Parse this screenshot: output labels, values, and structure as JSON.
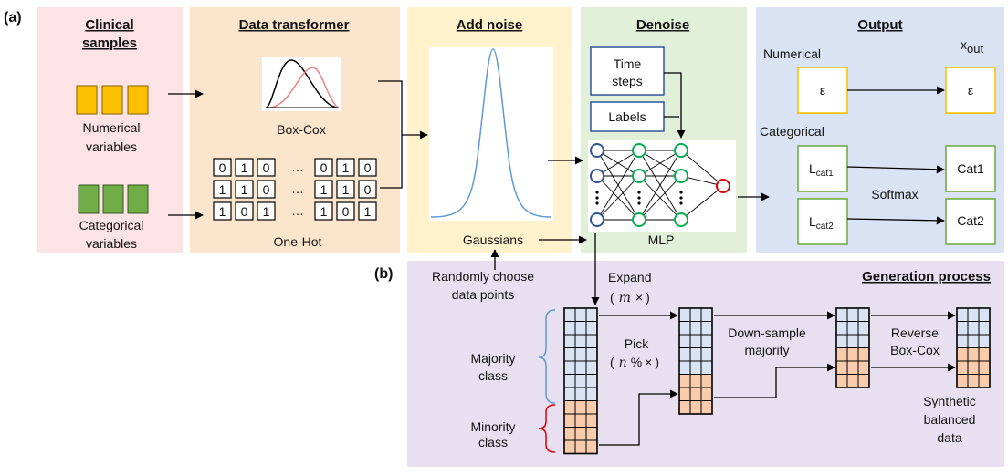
{
  "panel_a": {
    "tag": "(a)",
    "clinical": {
      "title_line1": "Clinical",
      "title_line2": "samples",
      "numerical_line1": "Numerical",
      "numerical_line2": "variables",
      "categorical_line1": "Categorical",
      "categorical_line2": "variables"
    },
    "transformer": {
      "title": "Data transformer",
      "boxcox": "Box-Cox",
      "onehot": "One-Hot",
      "ellipsis": "…",
      "rows": [
        [
          "0",
          "1",
          "0",
          "0",
          "1",
          "0"
        ],
        [
          "1",
          "1",
          "0",
          "1",
          "1",
          "0"
        ],
        [
          "1",
          "0",
          "1",
          "1",
          "0",
          "1"
        ]
      ]
    },
    "noise": {
      "title": "Add noise",
      "gaussians": "Gaussians"
    },
    "denoise": {
      "title": "Denoise",
      "time_line1": "Time",
      "time_line2": "steps",
      "labels": "Labels",
      "mlp": "MLP"
    },
    "output": {
      "title": "Output",
      "numerical": "Numerical",
      "categorical": "Categorical",
      "xout_main": "x",
      "xout_sub": "out",
      "epsilon": "ε",
      "lcat1_main": "L",
      "lcat1_sub": "cat1",
      "lcat2_main": "L",
      "lcat2_sub": "cat2",
      "cat1": "Cat1",
      "cat2": "Cat2",
      "softmax": "Softmax"
    }
  },
  "panel_b": {
    "tag": "(b)",
    "title": "Generation process",
    "random_line1": "Randomly choose",
    "random_line2": "data points",
    "expand_line1": "Expand",
    "expand_m": "m",
    "expand_x": "×",
    "expand_open": "(",
    "expand_close": ")",
    "pick": "Pick",
    "pick_n": "n",
    "pick_pct": "%",
    "majority_line1": "Majority",
    "majority_line2": "class",
    "minority_line1": "Minority",
    "minority_line2": "class",
    "downsample_line1": "Down-sample",
    "downsample_line2": "majority",
    "reverse_line1": "Reverse",
    "reverse_line2": "Box-Cox",
    "synthetic_line1": "Synthetic",
    "synthetic_line2": "balanced",
    "synthetic_line3": "data"
  },
  "colors": {
    "panel_clinical": "#fce4e6",
    "panel_transformer": "#fce5cd",
    "panel_noise": "#fff2cc",
    "panel_denoise": "#e2efd9",
    "panel_output": "#dae3f3",
    "panel_generation": "#e8dff1",
    "numerical_block": "#ffc000",
    "categorical_block": "#70ad47",
    "majority_cell": "#dae3f3",
    "minority_cell": "#f8cbad",
    "node_blue": "#2f5597",
    "node_green": "#00b050",
    "node_red": "#e00000",
    "gauss": "#5b9bd5",
    "dist_black": "#000000",
    "dist_red": "#f08080"
  }
}
